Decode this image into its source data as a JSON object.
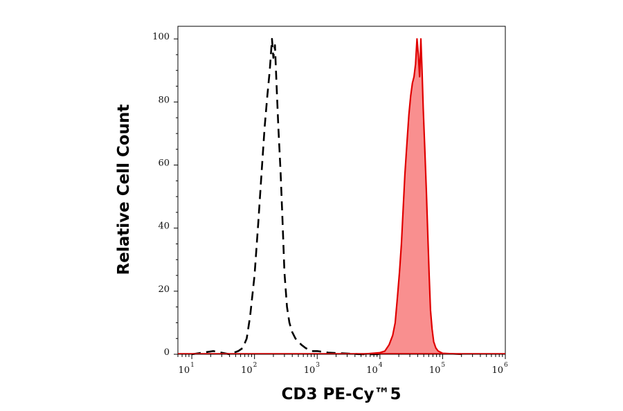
{
  "chart_data": {
    "type": "area",
    "title": "",
    "xlabel": "CD3 PE-Cy™5",
    "ylabel": "Relative Cell Count",
    "xscale": "log",
    "xlim": [
      6,
      1000000
    ],
    "ylim": [
      0,
      104
    ],
    "grid": false,
    "legend": "none",
    "x_ticks": [
      {
        "base": "10",
        "exp": "1",
        "value": 10
      },
      {
        "base": "10",
        "exp": "2",
        "value": 100
      },
      {
        "base": "10",
        "exp": "3",
        "value": 1000
      },
      {
        "base": "10",
        "exp": "4",
        "value": 10000
      },
      {
        "base": "10",
        "exp": "5",
        "value": 100000
      },
      {
        "base": "10",
        "exp": "6",
        "value": 1000000
      }
    ],
    "y_ticks": [
      "0",
      "20",
      "40",
      "60",
      "80",
      "100"
    ],
    "series": [
      {
        "style": "dashed",
        "color": "#000000",
        "fill": "none",
        "x": [
          10,
          22,
          40,
          55,
          65,
          75,
          85,
          100,
          115,
          130,
          145,
          160,
          175,
          190,
          200,
          212,
          225,
          240,
          260,
          280,
          300,
          330,
          360,
          400,
          450,
          500,
          560,
          650,
          800,
          1000,
          1500,
          2500,
          5000,
          10000
        ],
        "y": [
          0,
          1,
          0,
          1,
          2,
          5,
          12,
          25,
          42,
          58,
          72,
          82,
          90,
          100,
          94,
          98,
          85,
          72,
          58,
          42,
          26,
          15,
          10,
          7,
          5,
          4,
          3,
          2,
          1,
          1,
          0.5,
          0.3,
          0,
          0
        ]
      },
      {
        "style": "solid",
        "color": "#e00000",
        "fill": "#f98f8f",
        "x": [
          5000,
          10000,
          12000,
          14000,
          16000,
          17500,
          19000,
          20500,
          22000,
          23500,
          25000,
          27000,
          29000,
          31000,
          33000,
          35000,
          37000,
          39000,
          41000,
          43000,
          45000,
          47000,
          49000,
          52000,
          55000,
          58000,
          61000,
          64000,
          68000,
          72000,
          78000,
          85000,
          100000,
          200000
        ],
        "y": [
          0,
          0.5,
          1,
          3,
          6,
          10,
          18,
          26,
          35,
          46,
          57,
          67,
          76,
          82,
          86,
          88,
          92,
          100,
          95,
          88,
          100,
          90,
          78,
          65,
          52,
          38,
          25,
          14,
          8,
          4,
          2,
          1,
          0.3,
          0
        ]
      }
    ]
  }
}
